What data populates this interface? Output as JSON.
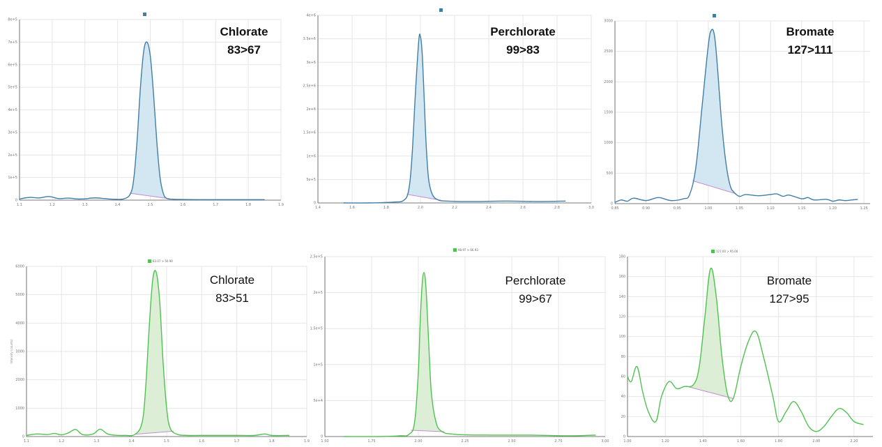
{
  "colors": {
    "blue_line": "#3f7ea6",
    "blue_fill": "#d3e7f3",
    "green_line": "#4ec24e",
    "green_fill": "#dcefd6",
    "baseline": "#c78ad4",
    "legend_blue": "#3f7ea6",
    "legend_green": "#4ec24e"
  },
  "chart_data": [
    {
      "type": "area",
      "legend": "",
      "annotation": {
        "analyte": "Chlorate",
        "transition": "83>67"
      },
      "xlim": [
        1.1,
        1.9
      ],
      "ylim": [
        0,
        8
      ],
      "x_ticks": [
        1.1,
        1.2,
        1.3,
        1.4,
        1.5,
        1.6,
        1.7,
        1.8,
        1.9
      ],
      "y_ticks": [
        0,
        1,
        2,
        3,
        4,
        5,
        6,
        7,
        8
      ],
      "x_tick_labels": [
        "1.1",
        "1.2",
        "1.3",
        "1.4",
        "1.5",
        "1.6",
        "1.7",
        "1.8",
        "1.9"
      ],
      "y_tick_labels": [
        "0",
        "1e+5",
        "2e+5",
        "3e+5",
        "4e+5",
        "5e+5",
        "6e+5",
        "7e+5",
        "8e+5"
      ],
      "x": [
        1.1,
        1.13,
        1.16,
        1.19,
        1.22,
        1.25,
        1.28,
        1.3,
        1.33,
        1.36,
        1.39,
        1.42,
        1.44,
        1.45,
        1.46,
        1.47,
        1.48,
        1.49,
        1.5,
        1.51,
        1.52,
        1.53,
        1.54,
        1.55,
        1.57,
        1.6,
        1.65,
        1.7,
        1.75,
        1.8,
        1.85
      ],
      "y": [
        0.05,
        0.12,
        0.1,
        0.16,
        0.07,
        0.09,
        0.05,
        0.06,
        0.1,
        0.07,
        0.04,
        0.06,
        0.3,
        1.0,
        2.7,
        5.0,
        6.6,
        7.0,
        6.4,
        4.7,
        2.6,
        1.0,
        0.3,
        0.08,
        0.04,
        0.03,
        0.02,
        0.02,
        0.02,
        0.02,
        0.02
      ],
      "peak_range": [
        1.44,
        1.56
      ]
    },
    {
      "type": "area",
      "legend": "",
      "annotation": {
        "analyte": "Perchlorate",
        "transition": "99>83"
      },
      "xlim": [
        1.4,
        3.0
      ],
      "ylim": [
        0,
        4
      ],
      "x_ticks": [
        1.4,
        1.6,
        1.8,
        2.0,
        2.2,
        2.4,
        2.6,
        2.8,
        3.0
      ],
      "y_ticks": [
        0,
        0.5,
        1,
        1.5,
        2,
        2.5,
        3,
        3.5,
        4
      ],
      "x_tick_labels": [
        "1.4",
        "1.6",
        "1.8",
        "2.0",
        "2.2",
        "2.4",
        "2.6",
        "2.8",
        "3.0"
      ],
      "y_tick_labels": [
        "0",
        "5e+5",
        "1e+6",
        "1.5e+6",
        "2e+6",
        "2.5e+6",
        "3e+6",
        "3.5e+6",
        "4e+6"
      ],
      "x": [
        1.55,
        1.7,
        1.8,
        1.85,
        1.9,
        1.93,
        1.95,
        1.97,
        1.99,
        2.0,
        2.01,
        2.02,
        2.03,
        2.04,
        2.05,
        2.07,
        2.1,
        2.15,
        2.3,
        2.5,
        2.7,
        2.85
      ],
      "y": [
        0.0,
        0.0,
        0.01,
        0.02,
        0.05,
        0.25,
        0.95,
        2.3,
        3.45,
        3.55,
        3.2,
        2.4,
        1.5,
        0.85,
        0.45,
        0.18,
        0.07,
        0.04,
        0.03,
        0.04,
        0.03,
        0.04
      ],
      "peak_range": [
        1.92,
        2.12
      ]
    },
    {
      "type": "area",
      "legend": "",
      "annotation": {
        "analyte": "Bromate",
        "transition": "127>111"
      },
      "xlim": [
        0.85,
        1.26
      ],
      "ylim": [
        0,
        3
      ],
      "x_ticks": [
        0.85,
        0.9,
        0.95,
        1.0,
        1.05,
        1.1,
        1.15,
        1.2,
        1.25
      ],
      "y_ticks": [
        0,
        0.5,
        1,
        1.5,
        2,
        2.5,
        3
      ],
      "x_tick_labels": [
        "0.85",
        "0.90",
        "0.95",
        "1.00",
        "1.05",
        "1.10",
        "1.15",
        "1.20",
        "1.25"
      ],
      "y_tick_labels": [
        "0",
        "500",
        "1000",
        "1500",
        "2000",
        "2500",
        "3000"
      ],
      "x": [
        0.85,
        0.86,
        0.87,
        0.88,
        0.9,
        0.92,
        0.94,
        0.96,
        0.97,
        0.98,
        0.99,
        1.0,
        1.005,
        1.01,
        1.015,
        1.02,
        1.025,
        1.03,
        1.035,
        1.04,
        1.05,
        1.06,
        1.08,
        1.1,
        1.11,
        1.12,
        1.13,
        1.15,
        1.16,
        1.17,
        1.19,
        1.2,
        1.21,
        1.22,
        1.23,
        1.24
      ],
      "y": [
        0.02,
        0.06,
        0.04,
        0.09,
        0.05,
        0.1,
        0.05,
        0.08,
        0.15,
        0.6,
        1.6,
        2.6,
        2.85,
        2.75,
        2.2,
        1.5,
        0.95,
        0.55,
        0.3,
        0.2,
        0.12,
        0.15,
        0.13,
        0.15,
        0.16,
        0.12,
        0.14,
        0.08,
        0.1,
        0.06,
        0.07,
        0.04,
        0.06,
        0.05,
        0.06,
        0.07
      ],
      "peak_range": [
        0.975,
        1.045
      ]
    },
    {
      "type": "area",
      "legend": "83.07 > 50.90",
      "annotation": {
        "analyte": "Chlorate",
        "transition": "83>51"
      },
      "xlim": [
        1.1,
        1.9
      ],
      "ylim": [
        0,
        6000
      ],
      "x_ticks": [
        1.1,
        1.2,
        1.3,
        1.4,
        1.5,
        1.6,
        1.7,
        1.8,
        1.9
      ],
      "y_ticks": [
        0,
        1000,
        2000,
        3000,
        4000,
        5000,
        6000
      ],
      "x_tick_labels": [
        "1.1",
        "1.2",
        "1.3",
        "1.4",
        "1.5",
        "1.6",
        "1.7",
        "1.8",
        "1.9"
      ],
      "y_tick_labels": [
        "0",
        "1000",
        "2000",
        "3000",
        "4000",
        "5000",
        "6000"
      ],
      "y_axis_title": "Intensity (counts)",
      "x": [
        1.1,
        1.13,
        1.16,
        1.18,
        1.2,
        1.22,
        1.24,
        1.26,
        1.29,
        1.31,
        1.33,
        1.35,
        1.38,
        1.41,
        1.43,
        1.44,
        1.45,
        1.46,
        1.47,
        1.48,
        1.49,
        1.5,
        1.51,
        1.53,
        1.56,
        1.6,
        1.65,
        1.7,
        1.75,
        1.78,
        1.8,
        1.85
      ],
      "y": [
        40,
        90,
        70,
        110,
        60,
        130,
        250,
        70,
        90,
        260,
        100,
        50,
        40,
        80,
        500,
        1700,
        3800,
        5500,
        5800,
        4800,
        2600,
        1000,
        300,
        80,
        40,
        40,
        40,
        40,
        40,
        90,
        40,
        40
      ],
      "peak_range": [
        1.41,
        1.52
      ]
    },
    {
      "type": "area",
      "legend": "98.97 > 66.93",
      "annotation": {
        "analyte": "Perchlorate",
        "transition": "99>67"
      },
      "xlim": [
        1.5,
        3.0
      ],
      "ylim": [
        0,
        2.5
      ],
      "x_ticks": [
        1.5,
        1.75,
        2.0,
        2.25,
        2.5,
        2.75,
        3.0
      ],
      "y_ticks": [
        0,
        0.5,
        1,
        1.5,
        2,
        2.5
      ],
      "x_tick_labels": [
        "1.50",
        "1.75",
        "2.00",
        "2.25",
        "2.50",
        "2.75",
        "3.00"
      ],
      "y_tick_labels": [
        "0",
        "5e+4",
        "1e+5",
        "1.5e+5",
        "2e+5",
        "2.5e+5"
      ],
      "x": [
        1.6,
        1.8,
        1.9,
        1.95,
        1.98,
        2.0,
        2.01,
        2.02,
        2.03,
        2.04,
        2.05,
        2.06,
        2.07,
        2.09,
        2.12,
        2.2,
        2.4,
        2.6,
        2.8,
        2.95
      ],
      "y": [
        0.0,
        0.0,
        0.01,
        0.03,
        0.2,
        0.9,
        1.6,
        2.1,
        2.28,
        2.1,
        1.6,
        1.05,
        0.6,
        0.25,
        0.08,
        0.03,
        0.02,
        0.02,
        0.01,
        0.02
      ],
      "peak_range": [
        1.96,
        2.14
      ]
    },
    {
      "type": "area",
      "legend": "127.00 > 95.00",
      "annotation": {
        "analyte": "Bromate",
        "transition": "127>95"
      },
      "xlim": [
        1.0,
        2.3
      ],
      "ylim": [
        0,
        180
      ],
      "x_ticks": [
        1.0,
        1.2,
        1.4,
        1.6,
        1.8,
        2.0,
        2.2
      ],
      "y_ticks": [
        0,
        20,
        40,
        60,
        80,
        100,
        120,
        140,
        160,
        180
      ],
      "x_tick_labels": [
        "1.00",
        "1.20",
        "1.40",
        "1.60",
        "1.80",
        "2.00",
        "2.20"
      ],
      "y_tick_labels": [
        "0",
        "20",
        "40",
        "60",
        "80",
        "100",
        "120",
        "140",
        "160",
        "180"
      ],
      "x": [
        1.0,
        1.02,
        1.05,
        1.08,
        1.11,
        1.15,
        1.18,
        1.22,
        1.26,
        1.3,
        1.35,
        1.38,
        1.41,
        1.44,
        1.47,
        1.5,
        1.53,
        1.56,
        1.6,
        1.64,
        1.68,
        1.72,
        1.77,
        1.8,
        1.84,
        1.88,
        1.92,
        1.96,
        2.0,
        2.04,
        2.08,
        2.12,
        2.16,
        2.2,
        2.25
      ],
      "y": [
        60,
        55,
        70,
        45,
        25,
        15,
        40,
        55,
        48,
        50,
        52,
        70,
        120,
        168,
        140,
        80,
        42,
        38,
        70,
        95,
        105,
        80,
        40,
        15,
        25,
        35,
        25,
        10,
        5,
        10,
        20,
        28,
        24,
        15,
        12
      ],
      "peak_range": [
        1.31,
        1.56
      ]
    }
  ]
}
